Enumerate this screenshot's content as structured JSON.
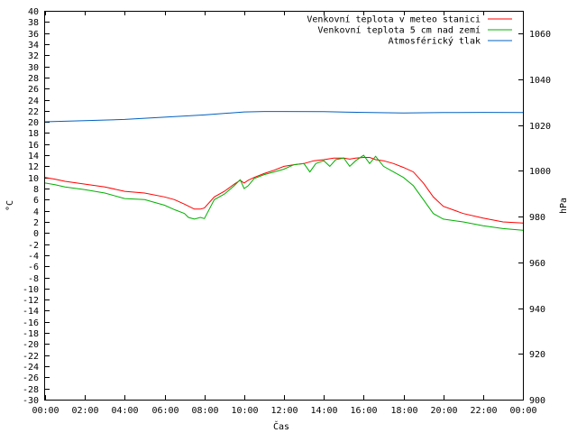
{
  "chart_data": {
    "type": "line",
    "xlabel": "Čas",
    "ylabel": "°C",
    "y2label": "hPa",
    "x_ticks": [
      "00:00",
      "02:00",
      "04:00",
      "06:00",
      "08:00",
      "10:00",
      "12:00",
      "14:00",
      "16:00",
      "18:00",
      "20:00",
      "22:00",
      "00:00"
    ],
    "xlim_hours": [
      0,
      24
    ],
    "ylim": [
      -30,
      40
    ],
    "y_ticks": [
      40,
      38,
      36,
      34,
      32,
      30,
      28,
      26,
      24,
      22,
      20,
      18,
      16,
      14,
      12,
      10,
      8,
      6,
      4,
      2,
      0,
      -2,
      -4,
      -6,
      -8,
      -10,
      -12,
      -14,
      -16,
      -18,
      -20,
      -22,
      -24,
      -26,
      -28,
      -30
    ],
    "y2lim": [
      900,
      1070
    ],
    "y2_ticks": [
      1060,
      1040,
      1020,
      1000,
      980,
      960,
      940,
      920,
      900
    ],
    "legend_position": "top-right",
    "series": [
      {
        "name": "Venkovní teplota v meteo stanici",
        "color": "#ff0000",
        "axis": "left",
        "x": [
          0,
          0.5,
          1,
          2,
          3,
          4,
          5,
          6,
          6.5,
          7,
          7.5,
          7.8,
          8,
          8.5,
          9,
          9.5,
          9.8,
          10,
          10.2,
          10.5,
          11,
          11.5,
          12,
          12.5,
          13,
          13.5,
          14,
          14.5,
          15,
          15.3,
          15.6,
          16,
          16.3,
          16.6,
          17,
          17.5,
          18,
          18.5,
          19,
          19.5,
          20,
          21,
          22,
          23,
          24
        ],
        "values": [
          10,
          9.7,
          9.3,
          8.8,
          8.3,
          7.5,
          7.2,
          6.5,
          6.0,
          5.2,
          4.3,
          4.3,
          4.5,
          6.5,
          7.5,
          8.8,
          9.5,
          9.0,
          9.5,
          10.0,
          10.7,
          11.3,
          12.0,
          12.3,
          12.5,
          13.0,
          13.2,
          13.5,
          13.5,
          13.3,
          13.5,
          13.6,
          13.6,
          13.2,
          13.0,
          12.5,
          11.8,
          11.0,
          9.0,
          6.5,
          4.8,
          3.5,
          2.7,
          2.0,
          1.8
        ]
      },
      {
        "name": "Venkovní teplota 5 cm nad zemí",
        "color": "#00b000",
        "axis": "left",
        "x": [
          0,
          0.5,
          1,
          2,
          3,
          4,
          5,
          6,
          6.5,
          7,
          7.2,
          7.5,
          7.8,
          8,
          8.5,
          9,
          9.5,
          9.8,
          10,
          10.2,
          10.5,
          11,
          11.5,
          12,
          12.5,
          13,
          13.3,
          13.6,
          14,
          14.3,
          14.6,
          15,
          15.3,
          15.6,
          16,
          16.3,
          16.6,
          17,
          17.5,
          18,
          18.5,
          19,
          19.5,
          20,
          21,
          22,
          23,
          24
        ],
        "values": [
          9,
          8.7,
          8.3,
          7.8,
          7.2,
          6.2,
          6.0,
          5.0,
          4.2,
          3.5,
          2.8,
          2.5,
          2.8,
          2.6,
          6.0,
          7.0,
          8.5,
          9.6,
          8.0,
          8.5,
          9.8,
          10.5,
          11.0,
          11.5,
          12.3,
          12.5,
          11.0,
          12.5,
          13.0,
          12.0,
          13.2,
          13.5,
          12.0,
          13.0,
          14.0,
          12.5,
          13.8,
          12.0,
          11.0,
          10.0,
          8.5,
          6.0,
          3.5,
          2.5,
          2.0,
          1.3,
          0.8,
          0.5
        ]
      },
      {
        "name": "Atmosférický tlak",
        "color": "#0060c0",
        "axis": "right",
        "x": [
          0,
          2,
          4,
          6,
          8,
          10,
          11,
          12,
          14,
          16,
          18,
          20,
          22,
          24
        ],
        "values": [
          1021.5,
          1022.0,
          1022.5,
          1023.5,
          1024.5,
          1025.8,
          1026.0,
          1026.0,
          1025.9,
          1025.6,
          1025.3,
          1025.5,
          1025.6,
          1025.5
        ]
      }
    ]
  }
}
